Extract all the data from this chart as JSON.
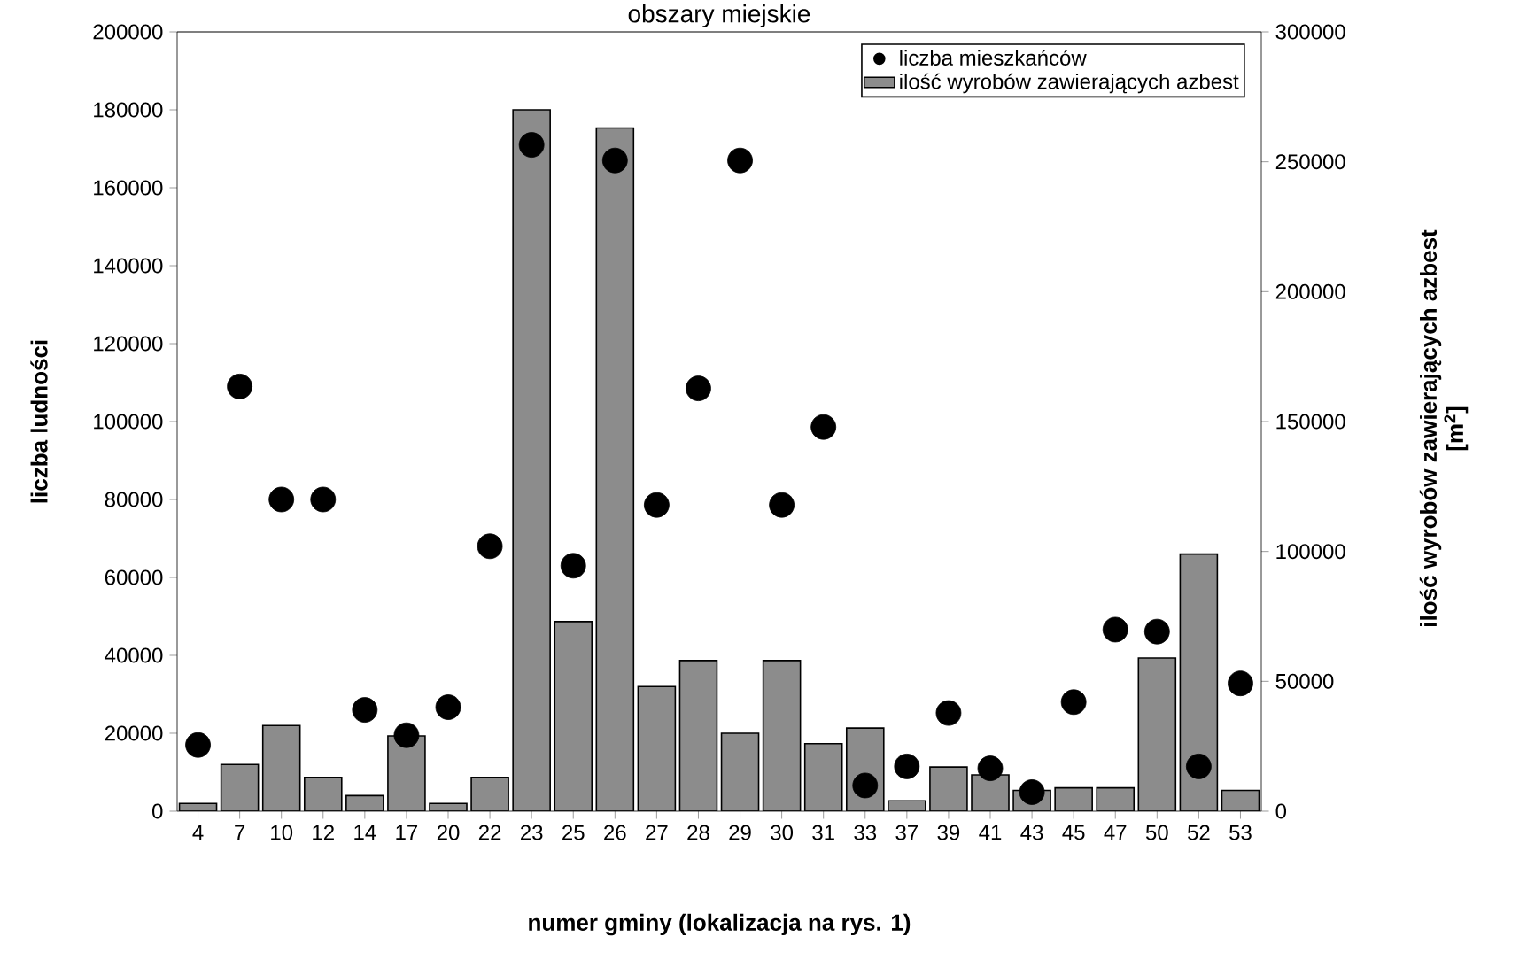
{
  "chart_data": {
    "type": "bar",
    "title": "obszary miejskie",
    "xlabel": "numer gminy (lokalizacja na rys. 1)",
    "ylabel": "liczba ludności",
    "y2label": "ilość wyrobów zawierających azbest [m$^{2}$]",
    "categories": [
      "4",
      "7",
      "10",
      "12",
      "14",
      "17",
      "20",
      "22",
      "23",
      "25",
      "26",
      "27",
      "28",
      "29",
      "30",
      "31",
      "33",
      "37",
      "39",
      "41",
      "43",
      "45",
      "47",
      "50",
      "52",
      "53"
    ],
    "series": [
      {
        "name": "liczba mieszkańców",
        "type": "scatter",
        "color": "#000000",
        "values": [
          17000,
          109000,
          80000,
          80000,
          26000,
          19500,
          26700,
          68000,
          171000,
          63000,
          167000,
          78600,
          108500,
          167000,
          78600,
          98600,
          6600,
          11500,
          25200,
          11000,
          4900,
          28000,
          46600,
          46100,
          11500,
          32800
        ]
      },
      {
        "name": "ilość wyrobów zawierających azbest",
        "axis": "y2",
        "color": "#8c8c8c",
        "values": [
          3000,
          18000,
          33000,
          13000,
          6000,
          29000,
          3000,
          13000,
          270000,
          73000,
          263000,
          48000,
          58000,
          30000,
          58000,
          26000,
          32000,
          4000,
          17000,
          14000,
          8000,
          9000,
          9000,
          59000,
          99000,
          8000
        ]
      }
    ],
    "ylim": [
      0,
      200000
    ],
    "yticks": [
      0,
      20000,
      40000,
      60000,
      80000,
      100000,
      120000,
      140000,
      160000,
      180000,
      200000
    ],
    "y2lim": [
      0,
      300000
    ],
    "y2ticks": [
      0,
      50000,
      100000,
      150000,
      200000,
      250000,
      300000
    ],
    "legend": "top right",
    "grid": false
  }
}
